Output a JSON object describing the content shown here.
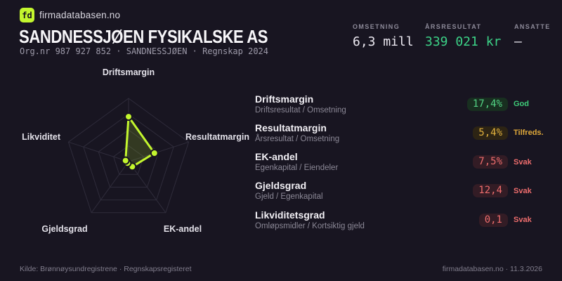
{
  "brand": {
    "logo_text": "fd",
    "name": "firmadatabasen.no"
  },
  "header": {
    "title": "SANDNESSJØEN FYSIKALSKE AS",
    "subtitle": "Org.nr 987 927 852  ·  SANDNESSJØEN  ·  Regnskap 2024"
  },
  "stats": [
    {
      "label": "OMSETNING",
      "value": "6,3 mill",
      "tone": "default"
    },
    {
      "label": "ÅRSRESULTAT",
      "value": "339 021 kr",
      "tone": "positive"
    },
    {
      "label": "ANSATTE",
      "value": "–",
      "tone": "default"
    }
  ],
  "chart_data": {
    "type": "radar",
    "axes": [
      "Driftsmargin",
      "Resultatmargin",
      "EK-andel",
      "Gjeldsgrad",
      "Likviditet"
    ],
    "values": [
      0.71,
      0.43,
      0.1,
      0.03,
      0.05
    ],
    "max": 1,
    "rings": 4,
    "legend": "none",
    "colors": {
      "stroke": "#c3f62e",
      "fill": "rgba(195,246,46,0.16)",
      "grid": "#2f2c3b",
      "dot_outline": "#181521"
    }
  },
  "metrics": [
    {
      "name": "Driftsmargin",
      "formula": "Driftsresultat / Omsetning",
      "value": "17,4%",
      "status": "God",
      "tone": "good"
    },
    {
      "name": "Resultatmargin",
      "formula": "Årsresultat / Omsetning",
      "value": "5,4%",
      "status": "Tilfreds.",
      "tone": "ok"
    },
    {
      "name": "EK-andel",
      "formula": "Egenkapital / Eiendeler",
      "value": "7,5%",
      "status": "Svak",
      "tone": "bad"
    },
    {
      "name": "Gjeldsgrad",
      "formula": "Gjeld / Egenkapital",
      "value": "12,4",
      "status": "Svak",
      "tone": "bad"
    },
    {
      "name": "Likviditetsgrad",
      "formula": "Omløpsmidler / Kortsiktig gjeld",
      "value": "0,1",
      "status": "Svak",
      "tone": "bad"
    }
  ],
  "footer": {
    "left": "Kilde: Brønnøysundregistrene · Regnskapsregisteret",
    "right": "firmadatabasen.no · 11.3.2026"
  }
}
